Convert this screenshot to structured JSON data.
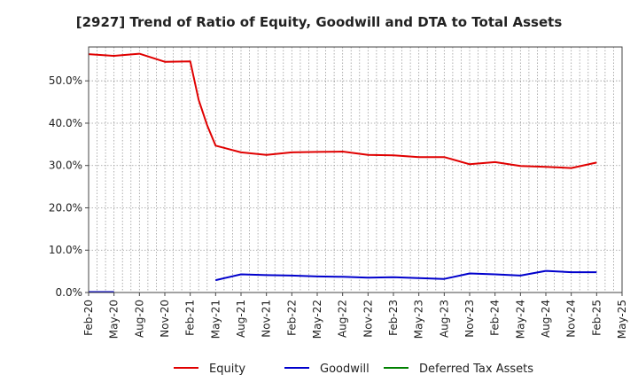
{
  "chart_data": {
    "type": "line",
    "title": "[2927]  Trend of Ratio of Equity, Goodwill and DTA to Total Assets",
    "xlabel": "",
    "ylabel": "",
    "ylim": [
      0,
      58
    ],
    "yticks": [
      "0.0%",
      "10.0%",
      "20.0%",
      "30.0%",
      "40.0%",
      "50.0%"
    ],
    "x_tick_labels": [
      "Feb-20",
      "May-20",
      "Aug-20",
      "Nov-20",
      "Feb-21",
      "May-21",
      "Aug-21",
      "Nov-21",
      "Feb-22",
      "May-22",
      "Aug-22",
      "Nov-22",
      "Feb-23",
      "May-23",
      "Aug-23",
      "Nov-23",
      "Feb-24",
      "May-24",
      "Aug-24",
      "Nov-24",
      "Feb-25",
      "May-25"
    ],
    "grid": true,
    "legend_position": "bottom",
    "series": [
      {
        "name": "Equity",
        "color": "#e00000",
        "points": [
          [
            "Feb-20",
            56.3
          ],
          [
            "May-20",
            55.9
          ],
          [
            "Aug-20",
            56.4
          ],
          [
            "Nov-20",
            54.5
          ],
          [
            "Feb-21",
            54.6
          ],
          [
            "Mar-21",
            45.5
          ],
          [
            "Apr-21",
            39.5
          ],
          [
            "May-21",
            34.7
          ],
          [
            "Aug-21",
            33.1
          ],
          [
            "Nov-21",
            32.5
          ],
          [
            "Feb-22",
            33.1
          ],
          [
            "May-22",
            33.2
          ],
          [
            "Aug-22",
            33.3
          ],
          [
            "Nov-22",
            32.5
          ],
          [
            "Feb-23",
            32.4
          ],
          [
            "May-23",
            32.0
          ],
          [
            "Aug-23",
            32.0
          ],
          [
            "Nov-23",
            30.3
          ],
          [
            "Feb-24",
            30.8
          ],
          [
            "May-24",
            29.9
          ],
          [
            "Aug-24",
            29.7
          ],
          [
            "Nov-24",
            29.4
          ],
          [
            "Feb-25",
            30.7
          ]
        ]
      },
      {
        "name": "Goodwill",
        "color": "#0000cc",
        "segments": [
          [
            [
              "Feb-20",
              0.1
            ],
            [
              "May-20",
              0.1
            ]
          ],
          [
            [
              "May-21",
              2.9
            ],
            [
              "Aug-21",
              4.3
            ],
            [
              "Nov-21",
              4.1
            ],
            [
              "Feb-22",
              4.0
            ],
            [
              "May-22",
              3.8
            ],
            [
              "Aug-22",
              3.7
            ],
            [
              "Nov-22",
              3.5
            ],
            [
              "Feb-23",
              3.6
            ],
            [
              "May-23",
              3.4
            ],
            [
              "Aug-23",
              3.2
            ],
            [
              "Nov-23",
              4.5
            ],
            [
              "Feb-24",
              4.3
            ],
            [
              "May-24",
              4.0
            ],
            [
              "Aug-24",
              5.1
            ],
            [
              "Nov-24",
              4.8
            ],
            [
              "Feb-25",
              4.8
            ]
          ]
        ]
      },
      {
        "name": "Deferred Tax Assets",
        "color": "#008000",
        "points": []
      }
    ]
  }
}
